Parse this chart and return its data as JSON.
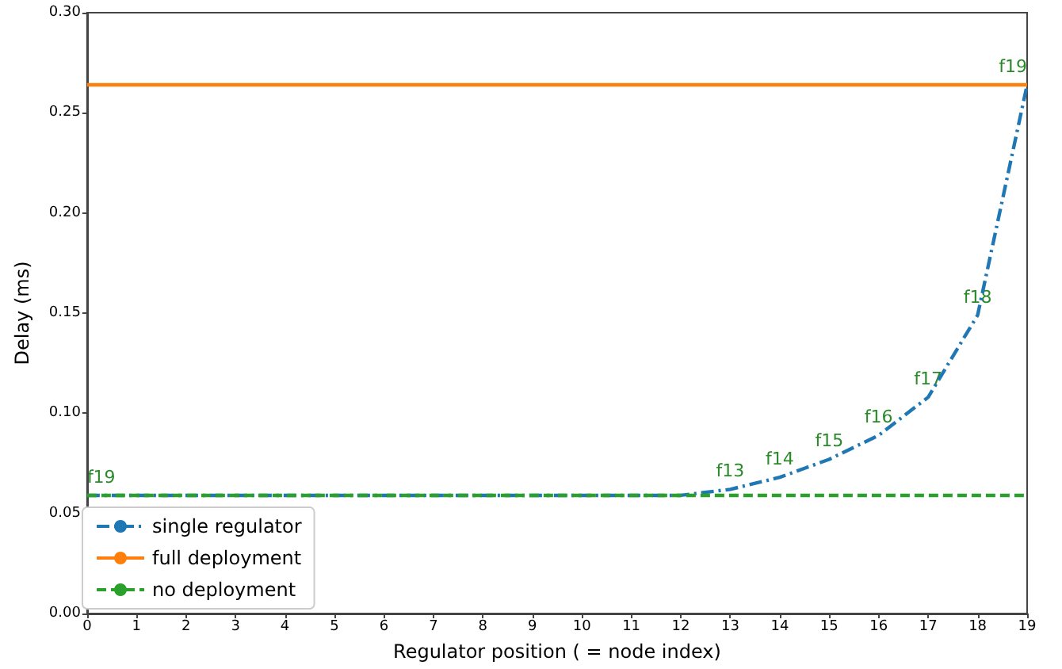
{
  "chart_data": {
    "type": "line",
    "xlabel": "Regulator position ( = node index)",
    "ylabel": "Delay (ms)",
    "x": [
      0,
      1,
      2,
      3,
      4,
      5,
      6,
      7,
      8,
      9,
      10,
      11,
      12,
      13,
      14,
      15,
      16,
      17,
      18,
      19
    ],
    "series": [
      {
        "name": "single regulator",
        "color": "#1f77b4",
        "line_style": "dashdot",
        "values": [
          0.059,
          0.059,
          0.059,
          0.059,
          0.059,
          0.059,
          0.059,
          0.059,
          0.059,
          0.059,
          0.059,
          0.059,
          0.059,
          0.062,
          0.068,
          0.077,
          0.089,
          0.108,
          0.149,
          0.264
        ]
      },
      {
        "name": "full deployment",
        "color": "#ff7f0e",
        "line_style": "solid",
        "values": [
          0.264,
          0.264,
          0.264,
          0.264,
          0.264,
          0.264,
          0.264,
          0.264,
          0.264,
          0.264,
          0.264,
          0.264,
          0.264,
          0.264,
          0.264,
          0.264,
          0.264,
          0.264,
          0.264,
          0.264
        ]
      },
      {
        "name": "no deployment",
        "color": "#2ca02c",
        "line_style": "dashed",
        "values": [
          0.059,
          0.059,
          0.059,
          0.059,
          0.059,
          0.059,
          0.059,
          0.059,
          0.059,
          0.059,
          0.059,
          0.059,
          0.059,
          0.059,
          0.059,
          0.059,
          0.059,
          0.059,
          0.059,
          0.059
        ]
      }
    ],
    "annotations": [
      {
        "text": "f19",
        "x": 0,
        "y": 0.059
      },
      {
        "text": "f13",
        "x": 13,
        "y": 0.062
      },
      {
        "text": "f14",
        "x": 14,
        "y": 0.068
      },
      {
        "text": "f15",
        "x": 15,
        "y": 0.077
      },
      {
        "text": "f16",
        "x": 16,
        "y": 0.089
      },
      {
        "text": "f17",
        "x": 17,
        "y": 0.108
      },
      {
        "text": "f18",
        "x": 18,
        "y": 0.149
      },
      {
        "text": "f19",
        "x": 19,
        "y": 0.264
      }
    ],
    "xlim": [
      0,
      19
    ],
    "xticks": [
      0,
      1,
      2,
      3,
      4,
      5,
      6,
      7,
      8,
      9,
      10,
      11,
      12,
      13,
      14,
      15,
      16,
      17,
      18,
      19
    ],
    "ylim": [
      0,
      0.3
    ],
    "yticks": [
      {
        "value": 0,
        "label": "0.00"
      },
      {
        "value": 0.05,
        "label": "0.05"
      },
      {
        "value": 0.1,
        "label": "0.10"
      },
      {
        "value": 0.15,
        "label": "0.15"
      },
      {
        "value": 0.2,
        "label": "0.20"
      },
      {
        "value": 0.25,
        "label": "0.25"
      },
      {
        "value": 0.3,
        "label": "0.30"
      }
    ],
    "grid": false,
    "legend": "bottom left",
    "marker": "none"
  }
}
